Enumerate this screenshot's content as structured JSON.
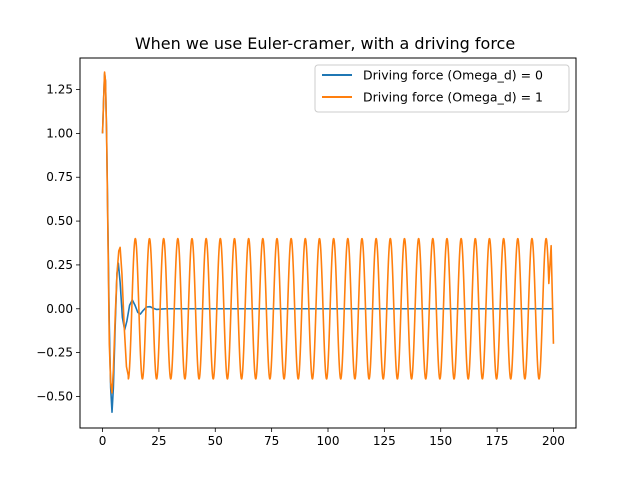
{
  "chart_data": {
    "type": "line",
    "title": "When we use Euler-cramer, with a driving force",
    "xlabel": "",
    "ylabel": "",
    "xlim": [
      -10,
      210
    ],
    "ylim": [
      -0.68,
      1.43
    ],
    "xticks": [
      0,
      25,
      50,
      75,
      100,
      125,
      150,
      175,
      200
    ],
    "yticks": [
      -0.5,
      -0.25,
      0.0,
      0.25,
      0.5,
      0.75,
      1.0,
      1.25
    ],
    "ytick_labels": [
      "−0.50",
      "−0.25",
      "0.00",
      "0.25",
      "0.50",
      "0.75",
      "1.00",
      "1.25"
    ],
    "grid": false,
    "legend": "top-right",
    "series": [
      {
        "name": "Driving force (Omega_d) = 0",
        "color": "#1f77b4",
        "description": "damped oscillation decaying to 0",
        "x_range": [
          0,
          200
        ],
        "points": [
          [
            0,
            1.0
          ],
          [
            0.5,
            1.2
          ],
          [
            0.9,
            1.34
          ],
          [
            1.3,
            1.3
          ],
          [
            1.8,
            1.0
          ],
          [
            2.4,
            0.45
          ],
          [
            3.0,
            -0.1
          ],
          [
            3.6,
            -0.45
          ],
          [
            4.2,
            -0.59
          ],
          [
            4.8,
            -0.45
          ],
          [
            5.6,
            -0.1
          ],
          [
            6.4,
            0.2
          ],
          [
            7.0,
            0.26
          ],
          [
            7.8,
            0.15
          ],
          [
            8.8,
            -0.05
          ],
          [
            9.8,
            -0.12
          ],
          [
            10.8,
            -0.07
          ],
          [
            12.0,
            0.02
          ],
          [
            13.2,
            0.05
          ],
          [
            14.4,
            0.02
          ],
          [
            15.6,
            -0.02
          ],
          [
            16.8,
            -0.03
          ],
          [
            18.0,
            -0.01
          ],
          [
            19.5,
            0.01
          ],
          [
            21.0,
            0.012
          ],
          [
            22.5,
            0.003
          ],
          [
            24.0,
            -0.004
          ],
          [
            26.0,
            -0.002
          ],
          [
            28.0,
            0.0
          ],
          [
            200.0,
            0.0
          ]
        ]
      },
      {
        "name": "Driving force (Omega_d) = 1",
        "color": "#ff7f0e",
        "description": "transient then steady sinusoid of amplitude 0.4, period about 6.28",
        "amplitude": 0.4,
        "period": 6.283,
        "x_range": [
          0,
          200
        ],
        "end_value": -0.2,
        "transient_points": [
          [
            0,
            1.0
          ],
          [
            0.5,
            1.2
          ],
          [
            0.9,
            1.35
          ],
          [
            1.3,
            1.3
          ],
          [
            1.8,
            1.0
          ],
          [
            2.4,
            0.4
          ],
          [
            3.0,
            -0.2
          ],
          [
            3.6,
            -0.42
          ],
          [
            4.2,
            -0.48
          ],
          [
            4.8,
            -0.35
          ],
          [
            5.6,
            -0.05
          ],
          [
            6.4,
            0.2
          ],
          [
            7.2,
            0.33
          ],
          [
            7.8,
            0.35
          ],
          [
            8.6,
            0.2
          ],
          [
            9.6,
            -0.1
          ],
          [
            10.6,
            -0.33
          ],
          [
            11.4,
            -0.38
          ]
        ]
      }
    ]
  }
}
